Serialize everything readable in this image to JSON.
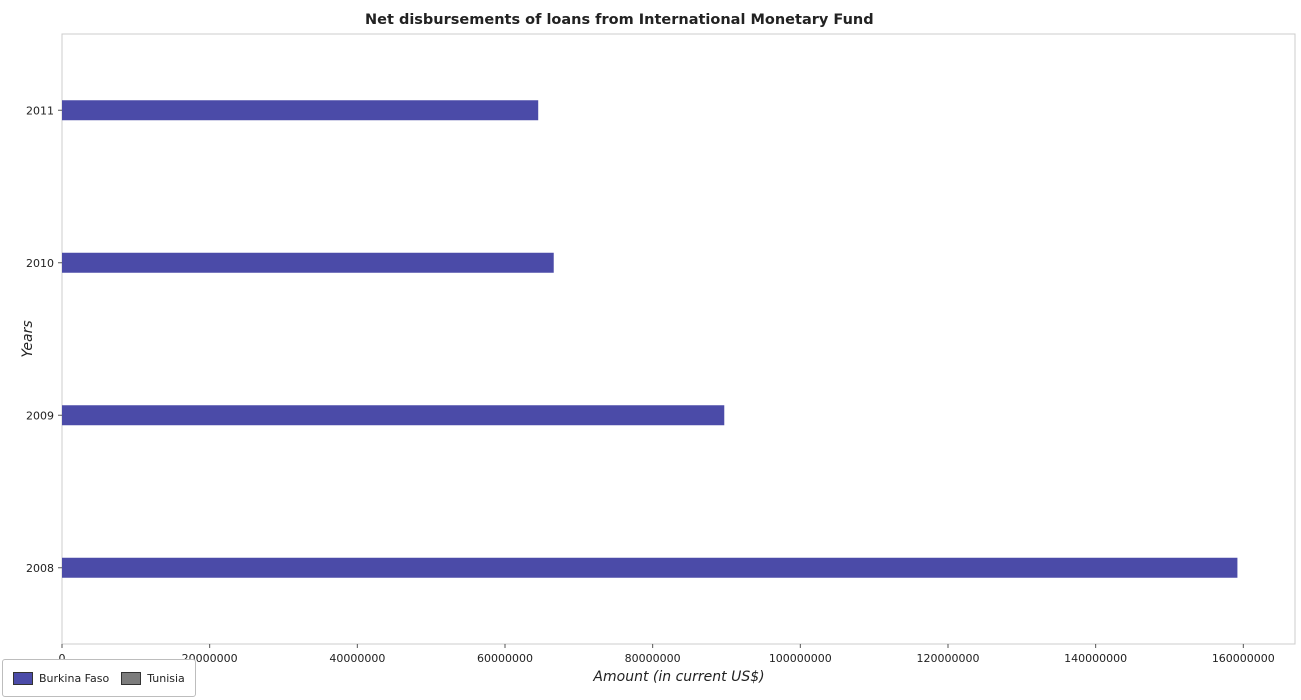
{
  "chart_data": {
    "type": "bar",
    "orientation": "horizontal",
    "title": "Net disbursements of loans from International Monetary Fund",
    "xlabel": "Amount (in current US$)",
    "ylabel": "Years",
    "categories": [
      "2008",
      "2009",
      "2010",
      "2011"
    ],
    "series": [
      {
        "name": "Burkina Faso",
        "color": "#4b4ba8",
        "values": [
          159200000,
          89700000,
          66600000,
          64500000
        ]
      },
      {
        "name": "Tunisia",
        "color": "#7c7c7c",
        "values": [
          0,
          0,
          0,
          0
        ]
      }
    ],
    "xlim": [
      0,
      167000000
    ],
    "xticks": [
      0,
      20000000,
      40000000,
      60000000,
      80000000,
      100000000,
      120000000,
      140000000,
      160000000
    ],
    "xtick_labels": [
      "0",
      "20000000",
      "40000000",
      "60000000",
      "80000000",
      "100000000",
      "120000000",
      "140000000",
      "160000000"
    ],
    "grid": false,
    "legend_position": "bottom-left"
  }
}
